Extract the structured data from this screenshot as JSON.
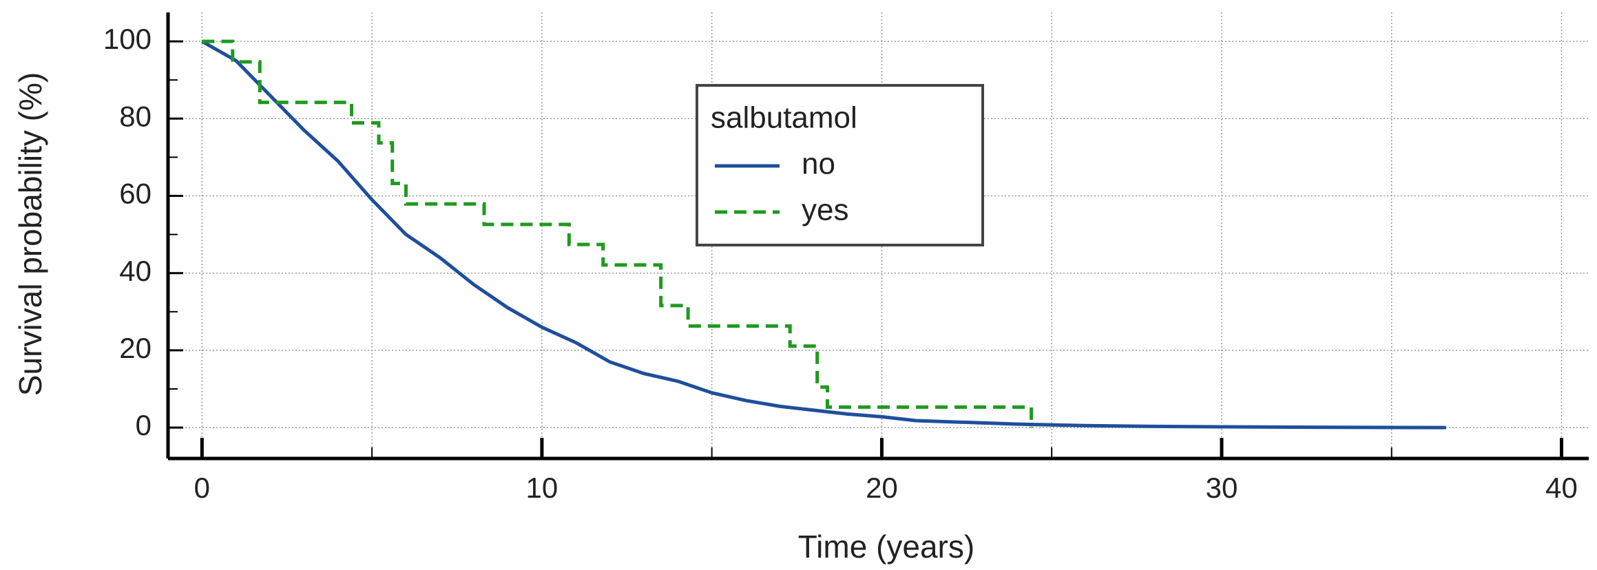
{
  "chart_data": {
    "type": "step",
    "xlabel": "Time (years)",
    "ylabel": "Survival probability (%)",
    "xlim": [
      -1,
      40.8
    ],
    "ylim": [
      -8,
      107.5
    ],
    "xticks": [
      0,
      10,
      20,
      30,
      40
    ],
    "xminorticks": [
      5,
      15,
      25,
      35
    ],
    "yticks": [
      0,
      20,
      40,
      60,
      80,
      100
    ],
    "yminorticks": [
      10,
      30,
      50,
      70,
      90
    ],
    "grid": true,
    "legend_title": "salbutamol",
    "series": [
      {
        "name": "no",
        "color": "#1f4e9c",
        "style": "solid",
        "interpolate": "line",
        "x": [
          0,
          1,
          2,
          3,
          4,
          5,
          6,
          7,
          8,
          9,
          10,
          11,
          12,
          13,
          14,
          15,
          16,
          17,
          18,
          19,
          20,
          21,
          22,
          23,
          24,
          25,
          26,
          28,
          30,
          32,
          36.6
        ],
        "values": [
          100,
          95,
          86,
          77,
          69,
          59,
          50,
          44,
          37,
          31,
          26,
          22,
          17,
          14,
          12,
          9,
          7,
          5.5,
          4.5,
          3.5,
          2.8,
          1.8,
          1.5,
          1.2,
          0.9,
          0.7,
          0.5,
          0.3,
          0.2,
          0.1,
          0
        ]
      },
      {
        "name": "yes",
        "color": "#1e9a1e",
        "style": "dashed",
        "interpolate": "step",
        "x": [
          0,
          0.9,
          1.7,
          4.4,
          5.2,
          5.6,
          6.0,
          8.3,
          10.8,
          11.8,
          13.5,
          14.3,
          17.3,
          18.1,
          18.4,
          24.4
        ],
        "values": [
          100,
          94.7,
          84.2,
          78.9,
          73.7,
          63.2,
          57.9,
          52.6,
          47.4,
          42.1,
          31.6,
          26.3,
          21.1,
          10.5,
          5.3,
          0
        ]
      }
    ]
  }
}
